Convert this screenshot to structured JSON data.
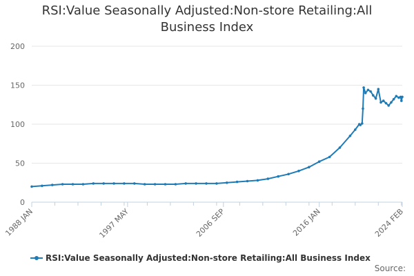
{
  "colors": {
    "series": "#1f7bb6",
    "grid": "#e6e6e6",
    "axis": "#c0d0e0"
  },
  "footer": {
    "source_label": "Source:"
  },
  "chart_data": {
    "type": "line",
    "title": "RSI:Value Seasonally Adjusted:Non-store Retailing:All Business Index",
    "xlabel": "",
    "ylabel": "",
    "xlim": [
      1988.0,
      2024.083
    ],
    "ylim": [
      0,
      200
    ],
    "y_ticks": [
      0,
      50,
      100,
      150,
      200
    ],
    "x_ticks": [
      {
        "label": "1988 JAN",
        "x": 1988.0
      },
      {
        "label": "1997 MAY",
        "x": 1997.333
      },
      {
        "label": "2006 SEP",
        "x": 2006.667
      },
      {
        "label": "2016 JAN",
        "x": 2016.0
      },
      {
        "label": "2024 FEB",
        "x": 2024.083
      }
    ],
    "grid": "horizontal",
    "legend_position": "bottom",
    "series": [
      {
        "name": "RSI:Value Seasonally Adjusted:Non-store Retailing:All Business Index",
        "x": [
          1988.0,
          1989.0,
          1990.0,
          1991.0,
          1992.0,
          1993.0,
          1994.0,
          1995.0,
          1996.0,
          1997.0,
          1998.0,
          1999.0,
          2000.0,
          2001.0,
          2002.0,
          2003.0,
          2004.0,
          2005.0,
          2006.0,
          2007.0,
          2008.0,
          2009.0,
          2010.0,
          2011.0,
          2012.0,
          2013.0,
          2014.0,
          2015.0,
          2016.0,
          2017.0,
          2018.0,
          2019.0,
          2019.5,
          2019.9,
          2020.0,
          2020.17,
          2020.25,
          2020.33,
          2020.5,
          2020.75,
          2021.0,
          2021.25,
          2021.5,
          2021.75,
          2022.0,
          2022.25,
          2022.5,
          2022.75,
          2023.0,
          2023.25,
          2023.5,
          2023.75,
          2023.92,
          2024.0,
          2024.083
        ],
        "values": [
          20,
          21,
          22,
          23,
          23,
          23,
          24,
          24,
          24,
          24,
          24,
          23,
          23,
          23,
          23,
          24,
          24,
          24,
          24,
          25,
          26,
          27,
          28,
          30,
          33,
          36,
          40,
          45,
          52,
          58,
          70,
          85,
          93,
          100,
          99,
          101,
          120,
          147,
          140,
          144,
          142,
          137,
          133,
          145,
          128,
          130,
          127,
          124,
          128,
          132,
          136,
          134,
          135,
          130,
          135
        ]
      }
    ]
  }
}
